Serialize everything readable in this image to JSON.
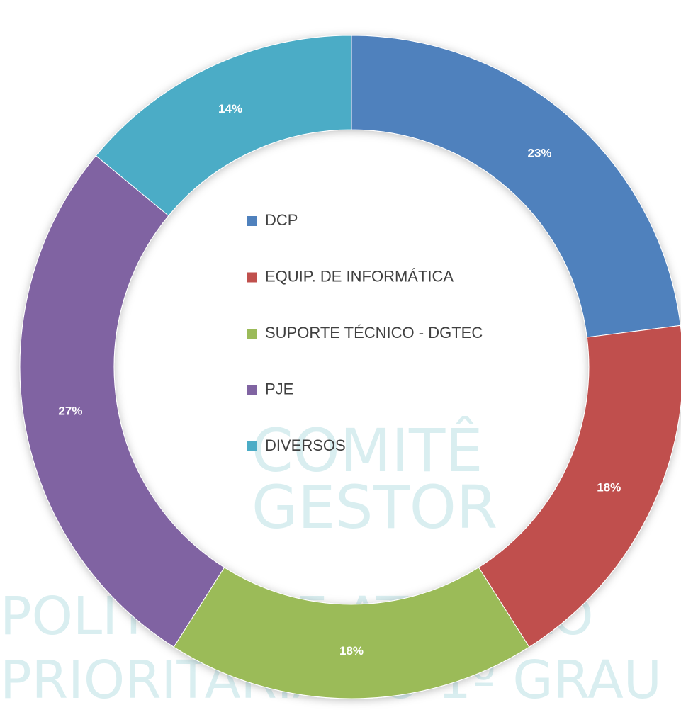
{
  "chart_data": {
    "type": "donut",
    "categories": [
      "DCP",
      "EQUIP. DE INFORMÁTICA",
      "SUPORTE TÉCNICO - DGTEC",
      "PJE",
      "DIVERSOS"
    ],
    "values": [
      23,
      18,
      18,
      27,
      14
    ],
    "value_labels": [
      "23%",
      "18%",
      "18%",
      "27%",
      "14%"
    ],
    "colors": [
      "#4f81bd",
      "#c0504d",
      "#9bbb59",
      "#8064a2",
      "#4bacc6"
    ],
    "legend": "center",
    "watermark": [
      "COMITÊ",
      "GESTOR",
      "POLÍTICA DE ATENÇÃO",
      "PRIORITÁRIA AO 1º GRAU"
    ]
  }
}
